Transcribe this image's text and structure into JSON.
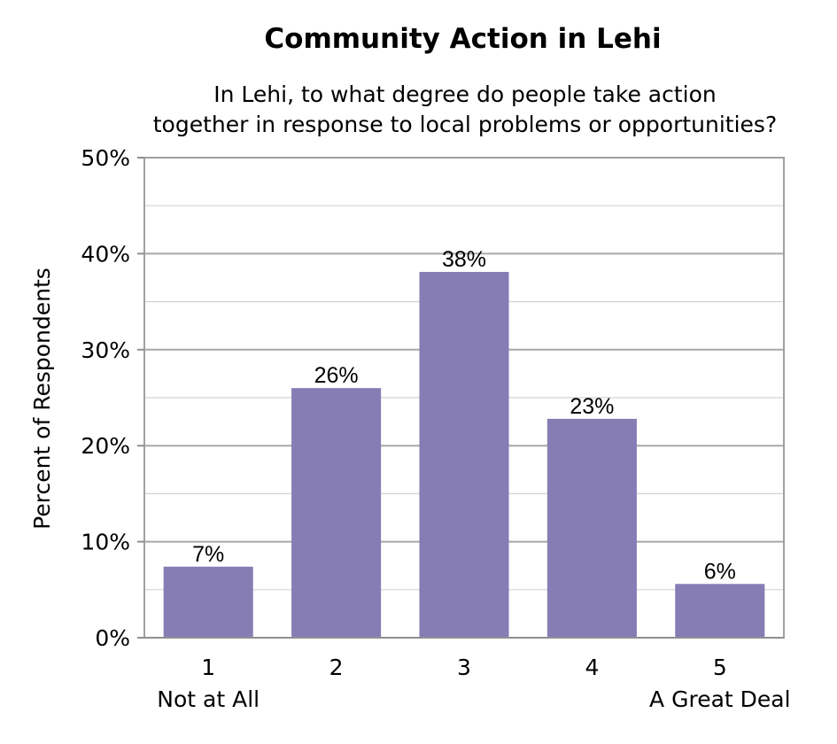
{
  "chart_data": {
    "type": "bar",
    "title": "Community Action in Lehi",
    "subtitle_lines": [
      "In Lehi, to what degree do people take action",
      "together in response to local problems or opportunities?"
    ],
    "ylabel": "Percent of Respondents",
    "xlabel": "",
    "categories": [
      "1",
      "2",
      "3",
      "4",
      "5"
    ],
    "category_sublabels": [
      "Not at All",
      "",
      "",
      "",
      "A Great Deal"
    ],
    "values": [
      7.4,
      26,
      38.1,
      22.8,
      5.6
    ],
    "data_labels": [
      "7%",
      "26%",
      "38%",
      "23%",
      "6%"
    ],
    "ylim": [
      0,
      50
    ],
    "yticks": [
      0,
      10,
      20,
      30,
      40,
      50
    ],
    "ytick_labels": [
      "0%",
      "10%",
      "20%",
      "30%",
      "40%",
      "50%"
    ],
    "grid": true,
    "bar_color": "#877db5",
    "grid_color": "#b0b0b0"
  }
}
